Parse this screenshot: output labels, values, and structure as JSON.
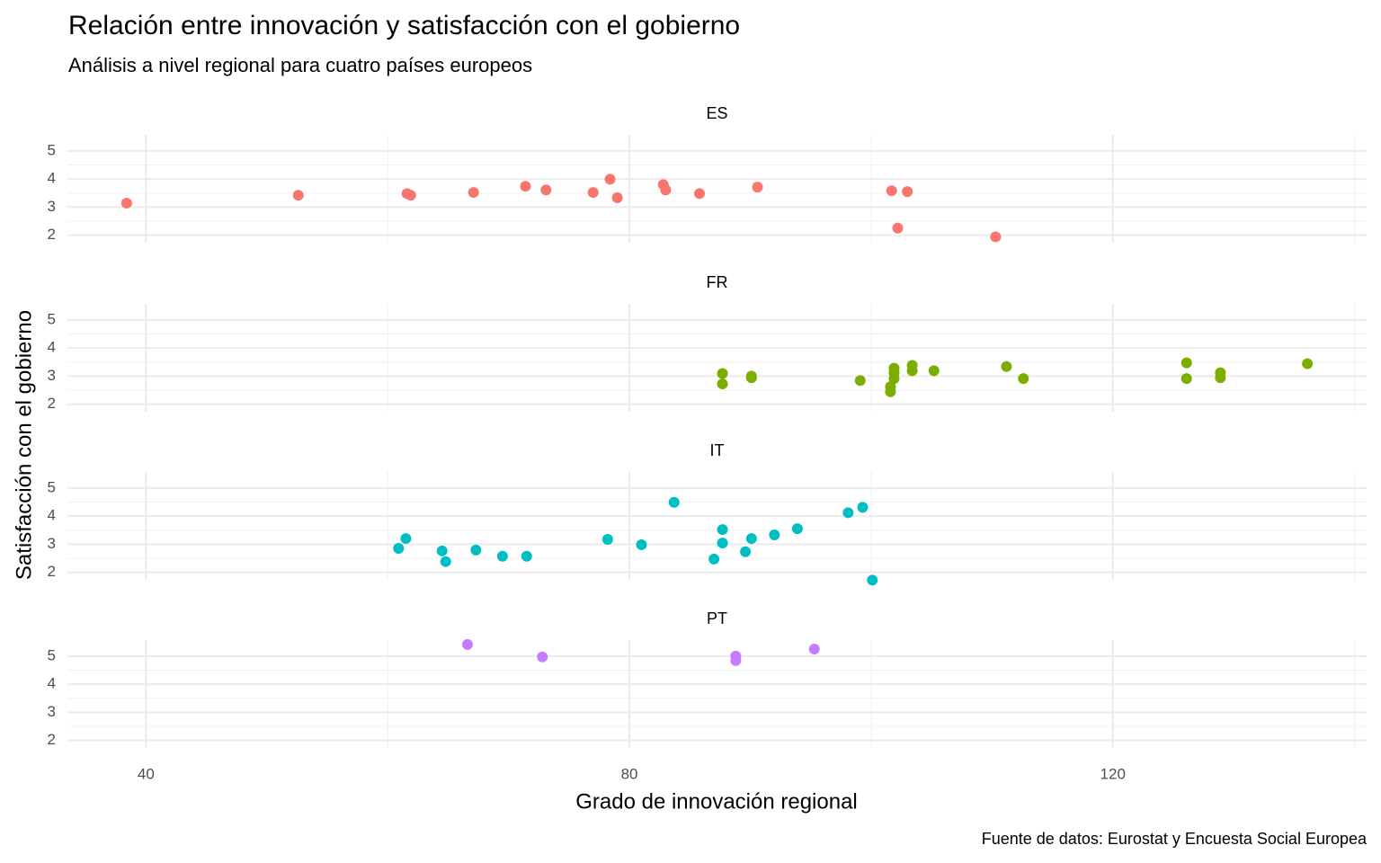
{
  "chart_data": {
    "type": "scatter",
    "title": "Relación entre innovación y satisfacción con el gobierno",
    "subtitle": "Análisis a nivel regional para cuatro países europeos",
    "x_label": "Grado de innovación regional",
    "y_label": "Satisfacción con el gobierno",
    "caption": "Fuente de datos: Eurostat y Encuesta Social Europea",
    "xlim": [
      33.5,
      141
    ],
    "xticks": [
      40,
      80,
      120
    ],
    "xminor_ticks": [
      60,
      100,
      140
    ],
    "ylim": [
      1.73,
      5.57
    ],
    "yminor_ticks": [
      2.5,
      3.5,
      4.5
    ],
    "grid": true,
    "panels": [
      {
        "title": "ES",
        "color": "#F8766D",
        "yticks": [
          2,
          3,
          4,
          5
        ],
        "x": [
          38.4,
          52.6,
          61.6,
          61.9,
          67.1,
          71.4,
          73.1,
          77.0,
          78.4,
          79.0,
          82.8,
          83.0,
          85.8,
          90.6,
          101.7,
          103.0,
          102.2,
          110.3
        ],
        "values": [
          3.14,
          3.42,
          3.48,
          3.42,
          3.52,
          3.74,
          3.61,
          3.52,
          3.99,
          3.33,
          3.8,
          3.61,
          3.48,
          3.71,
          3.58,
          3.55,
          2.25,
          1.94
        ]
      },
      {
        "title": "FR",
        "color": "#7CAE00",
        "yticks": [
          2,
          3,
          4,
          5
        ],
        "x": [
          87.7,
          87.7,
          90.1,
          90.1,
          99.1,
          101.6,
          101.6,
          101.9,
          101.9,
          101.9,
          103.4,
          103.4,
          105.2,
          111.2,
          112.6,
          126.1,
          126.1,
          128.9,
          128.9,
          136.1
        ],
        "values": [
          3.09,
          2.72,
          3.0,
          2.94,
          2.84,
          2.62,
          2.44,
          3.28,
          3.12,
          2.91,
          3.38,
          3.19,
          3.19,
          3.34,
          2.91,
          3.47,
          2.91,
          3.12,
          2.94,
          3.44
        ]
      },
      {
        "title": "IT",
        "color": "#00BFC4",
        "yticks": [
          2,
          3,
          4,
          5
        ],
        "x": [
          60.9,
          61.5,
          64.5,
          64.8,
          67.3,
          69.5,
          71.5,
          78.2,
          81.0,
          83.7,
          87.0,
          87.7,
          87.7,
          89.6,
          90.1,
          92.0,
          93.9,
          98.1,
          99.3,
          100.1
        ],
        "values": [
          2.85,
          3.2,
          2.76,
          2.38,
          2.79,
          2.57,
          2.57,
          3.17,
          2.98,
          4.49,
          2.47,
          3.52,
          3.04,
          2.73,
          3.2,
          3.33,
          3.55,
          4.12,
          4.31,
          1.72
        ]
      },
      {
        "title": "PT",
        "color": "#C77CFF",
        "yticks": [
          2,
          3,
          4,
          5
        ],
        "x": [
          66.6,
          72.8,
          88.8,
          88.8,
          95.3
        ],
        "values": [
          5.41,
          4.97,
          5.0,
          4.84,
          5.25
        ]
      }
    ]
  }
}
